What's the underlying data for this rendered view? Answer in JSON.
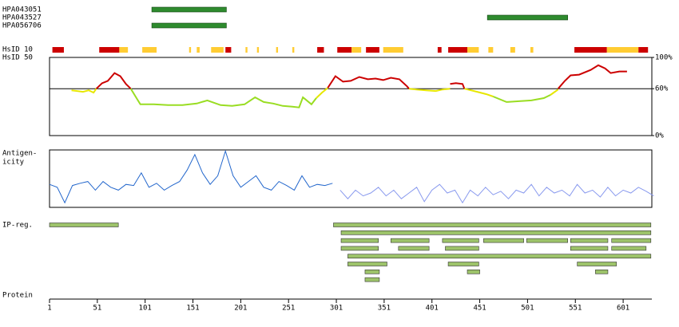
{
  "chart_data": {
    "type": "protein-tracks",
    "xlim": [
      1,
      631
    ],
    "xticks": [
      1,
      51,
      101,
      151,
      201,
      251,
      301,
      351,
      401,
      451,
      501,
      551,
      601
    ],
    "x_label": "Protein",
    "antibodies": [
      {
        "name": "HPA043051",
        "start": 108,
        "end": 186,
        "color": "#2e8b2e"
      },
      {
        "name": "HPA043527",
        "start": 459,
        "end": 543,
        "color": "#2e8b2e"
      },
      {
        "name": "HPA056706",
        "start": 108,
        "end": 186,
        "color": "#2e8b2e"
      }
    ],
    "hsid10": {
      "label": "HsID 10",
      "segments": [
        {
          "start": 4,
          "end": 16,
          "color": "#cc0000"
        },
        {
          "start": 53,
          "end": 74,
          "color": "#cc0000"
        },
        {
          "start": 74,
          "end": 83,
          "color": "#ffcc33"
        },
        {
          "start": 98,
          "end": 113,
          "color": "#ffcc33"
        },
        {
          "start": 147,
          "end": 149,
          "color": "#ffcc33"
        },
        {
          "start": 155,
          "end": 158,
          "color": "#ffcc33"
        },
        {
          "start": 170,
          "end": 183,
          "color": "#ffcc33"
        },
        {
          "start": 185,
          "end": 191,
          "color": "#cc0000"
        },
        {
          "start": 206,
          "end": 208,
          "color": "#ffcc33"
        },
        {
          "start": 218,
          "end": 220,
          "color": "#ffcc33"
        },
        {
          "start": 238,
          "end": 240,
          "color": "#ffcc33"
        },
        {
          "start": 255,
          "end": 257,
          "color": "#ffcc33"
        },
        {
          "start": 281,
          "end": 288,
          "color": "#cc0000"
        },
        {
          "start": 302,
          "end": 317,
          "color": "#cc0000"
        },
        {
          "start": 317,
          "end": 327,
          "color": "#ffcc33"
        },
        {
          "start": 332,
          "end": 346,
          "color": "#cc0000"
        },
        {
          "start": 350,
          "end": 371,
          "color": "#ffcc33"
        },
        {
          "start": 407,
          "end": 411,
          "color": "#cc0000"
        },
        {
          "start": 418,
          "end": 438,
          "color": "#cc0000"
        },
        {
          "start": 438,
          "end": 450,
          "color": "#ffcc33"
        },
        {
          "start": 460,
          "end": 465,
          "color": "#ffcc33"
        },
        {
          "start": 483,
          "end": 488,
          "color": "#ffcc33"
        },
        {
          "start": 504,
          "end": 507,
          "color": "#ffcc33"
        },
        {
          "start": 550,
          "end": 584,
          "color": "#cc0000"
        },
        {
          "start": 584,
          "end": 617,
          "color": "#ffcc33"
        },
        {
          "start": 617,
          "end": 627,
          "color": "#cc0000"
        }
      ]
    },
    "hsid50": {
      "label": "HsID 50",
      "ylim": [
        0,
        100
      ],
      "yticks": [
        {
          "value": 100,
          "label": "100%"
        },
        {
          "value": 60,
          "label": "60%"
        },
        {
          "value": 0,
          "label": "0%"
        }
      ],
      "reference_line": 60,
      "series": [
        {
          "color": "#e6e600",
          "x": [
            24,
            30,
            36,
            42,
            47,
            50
          ],
          "values": [
            58,
            57,
            56,
            58,
            55,
            60
          ]
        },
        {
          "color": "#cc0000",
          "x": [
            50,
            56,
            62,
            69,
            75,
            81,
            86
          ],
          "values": [
            60,
            67,
            70,
            80,
            76,
            66,
            60
          ]
        },
        {
          "color": "#99dd22",
          "x": [
            86,
            92,
            96,
            110,
            125,
            140,
            155,
            166,
            180,
            192,
            205,
            216,
            225,
            235,
            245,
            255,
            262,
            266,
            275,
            280
          ],
          "values": [
            60,
            48,
            40,
            40,
            39,
            39,
            41,
            45,
            39,
            38,
            40,
            49,
            43,
            41,
            38,
            37,
            36,
            49,
            40,
            48
          ]
        },
        {
          "color": "#e6e600",
          "x": [
            280,
            286,
            292
          ],
          "values": [
            48,
            55,
            61
          ]
        },
        {
          "color": "#cc0000",
          "x": [
            292,
            300,
            308,
            316,
            325,
            334,
            342,
            350,
            358,
            367,
            375,
            377
          ],
          "values": [
            61,
            76,
            69,
            70,
            75,
            72,
            73,
            71,
            74,
            72,
            63,
            60
          ]
        },
        {
          "color": "#e6e600",
          "x": [
            377,
            385,
            395,
            405,
            412,
            420
          ],
          "values": [
            60,
            59,
            58,
            57,
            59,
            60
          ]
        },
        {
          "color": "#cc0000",
          "x": [
            420,
            426,
            433,
            435
          ],
          "values": [
            66,
            67,
            66,
            60
          ]
        },
        {
          "color": "#e6e600",
          "x": [
            435,
            445,
            458,
            465
          ],
          "values": [
            60,
            57,
            53,
            50
          ]
        },
        {
          "color": "#99dd22",
          "x": [
            465,
            479,
            492,
            505,
            518,
            525
          ],
          "values": [
            50,
            43,
            44,
            45,
            48,
            52
          ]
        },
        {
          "color": "#e6e600",
          "x": [
            525,
            533
          ],
          "values": [
            52,
            59
          ]
        },
        {
          "color": "#cc0000",
          "x": [
            533,
            540,
            546,
            555,
            567,
            575,
            582,
            588,
            597,
            605
          ],
          "values": [
            60,
            70,
            77,
            78,
            84,
            90,
            86,
            80,
            82,
            82
          ]
        }
      ]
    },
    "antigenicity": {
      "label_lines": [
        "Antigen-",
        "icity"
      ],
      "ylim": [
        0,
        100
      ],
      "series": [
        {
          "color": "#2266cc",
          "x": [
            1,
            9,
            17,
            25,
            33,
            41,
            49,
            57,
            65,
            73,
            81,
            89,
            97,
            105,
            113,
            121,
            129,
            137,
            145,
            153,
            161,
            169,
            177,
            185,
            193,
            201,
            209,
            217,
            225,
            233,
            241,
            249,
            257,
            265,
            273,
            281,
            289,
            297
          ],
          "values": [
            40,
            35,
            8,
            38,
            42,
            45,
            30,
            45,
            35,
            30,
            40,
            38,
            60,
            35,
            42,
            30,
            38,
            45,
            65,
            92,
            60,
            40,
            55,
            98,
            55,
            35,
            45,
            55,
            35,
            30,
            45,
            38,
            30,
            55,
            35,
            40,
            38,
            42
          ]
        },
        {
          "color": "#8899ee",
          "x": [
            305,
            313,
            321,
            329,
            337,
            345,
            353,
            361,
            369,
            377,
            385,
            393,
            401,
            409,
            417,
            425,
            433,
            441,
            449,
            457,
            465,
            473,
            481,
            489,
            497,
            505,
            513,
            521,
            529,
            537,
            545,
            553,
            561,
            569,
            577,
            585,
            593,
            601,
            609,
            617,
            625,
            633
          ],
          "values": [
            30,
            15,
            30,
            20,
            25,
            35,
            20,
            30,
            15,
            25,
            35,
            10,
            30,
            40,
            25,
            30,
            8,
            30,
            20,
            35,
            22,
            28,
            15,
            30,
            25,
            40,
            20,
            35,
            25,
            30,
            20,
            40,
            25,
            30,
            18,
            35,
            20,
            30,
            25,
            35,
            28,
            20
          ]
        }
      ]
    },
    "ip_regions": {
      "label": "IP-reg.",
      "color": "#9dc36a",
      "rows": [
        [
          {
            "start": 1,
            "end": 73
          },
          {
            "start": 298,
            "end": 630
          }
        ],
        [
          {
            "start": 306,
            "end": 630
          }
        ],
        [
          {
            "start": 306,
            "end": 345
          },
          {
            "start": 358,
            "end": 398
          },
          {
            "start": 412,
            "end": 450
          },
          {
            "start": 455,
            "end": 497
          },
          {
            "start": 500,
            "end": 543
          },
          {
            "start": 546,
            "end": 585
          },
          {
            "start": 589,
            "end": 630
          }
        ],
        [
          {
            "start": 306,
            "end": 345
          },
          {
            "start": 366,
            "end": 398
          },
          {
            "start": 415,
            "end": 450
          },
          {
            "start": 546,
            "end": 585
          },
          {
            "start": 589,
            "end": 625
          }
        ],
        [
          {
            "start": 313,
            "end": 630
          }
        ],
        [
          {
            "start": 313,
            "end": 354
          },
          {
            "start": 418,
            "end": 450
          },
          {
            "start": 553,
            "end": 594
          }
        ],
        [
          {
            "start": 331,
            "end": 346
          },
          {
            "start": 438,
            "end": 451
          },
          {
            "start": 572,
            "end": 585
          }
        ],
        [
          {
            "start": 331,
            "end": 346
          }
        ]
      ]
    }
  }
}
